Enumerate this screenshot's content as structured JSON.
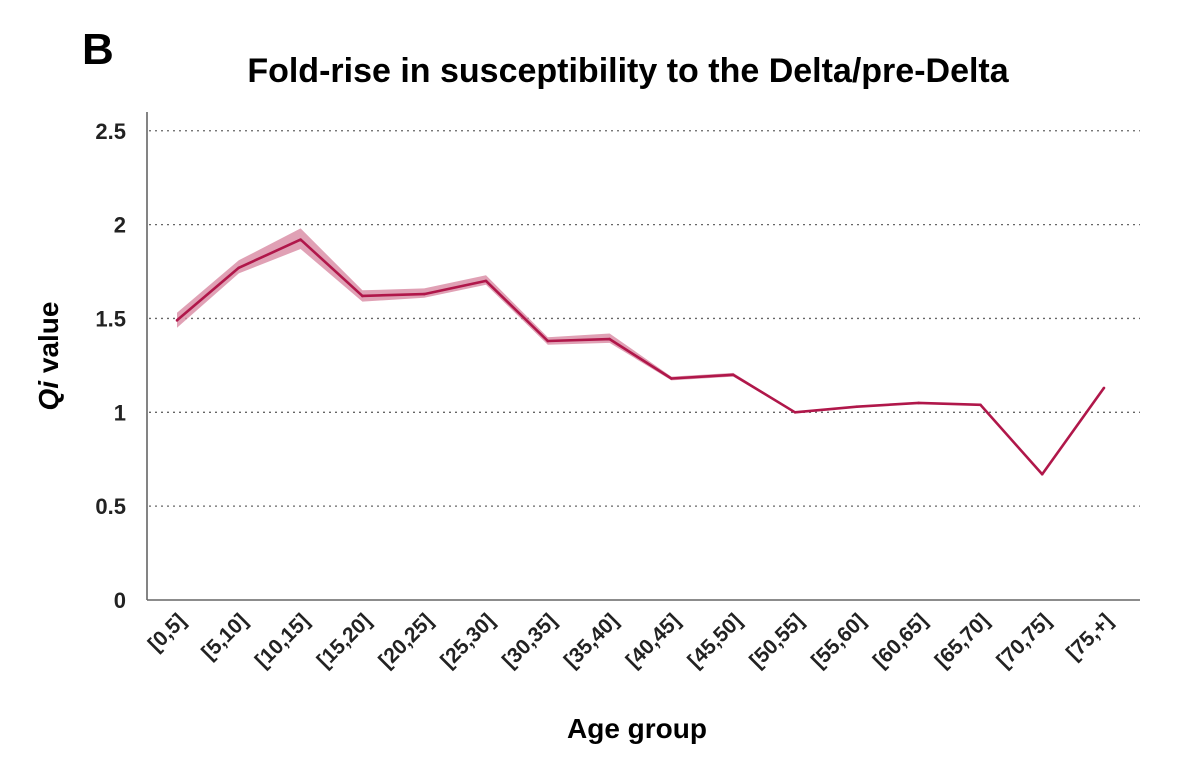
{
  "panel_letter": "B",
  "chart_data": {
    "type": "line",
    "title": "Fold-rise in susceptibility to the Delta/pre-Delta",
    "xlabel": "Age group",
    "ylabel_italic": "Qi",
    "ylabel_rest": " value",
    "ylim": [
      0,
      2.6
    ],
    "yticks": [
      {
        "value": 0,
        "label": "0"
      },
      {
        "value": 0.5,
        "label": "0.5"
      },
      {
        "value": 1,
        "label": "1"
      },
      {
        "value": 1.5,
        "label": "1.5"
      },
      {
        "value": 2,
        "label": "2"
      },
      {
        "value": 2.5,
        "label": "2.5"
      }
    ],
    "grid": true,
    "categories": [
      "[0,5]",
      "[5,10]",
      "[10,15]",
      "[15,20]",
      "[20,25]",
      "[25,30]",
      "[30,35]",
      "[35,40]",
      "[40,45]",
      "[45,50]",
      "[50,55]",
      "[55,60]",
      "[60,65]",
      "[65,70]",
      "[70,75]",
      "[75,+]"
    ],
    "series": [
      {
        "values": [
          1.49,
          1.77,
          1.92,
          1.62,
          1.63,
          1.7,
          1.38,
          1.39,
          1.18,
          1.2,
          1.0,
          1.03,
          1.05,
          1.04,
          0.67,
          1.13
        ],
        "lower": [
          1.45,
          1.74,
          1.87,
          1.59,
          1.61,
          1.68,
          1.36,
          1.37,
          1.17,
          1.19,
          0.995,
          1.025,
          1.045,
          1.035,
          0.665,
          1.125
        ],
        "upper": [
          1.53,
          1.81,
          1.98,
          1.65,
          1.66,
          1.73,
          1.4,
          1.42,
          1.19,
          1.21,
          1.005,
          1.035,
          1.055,
          1.045,
          0.675,
          1.135
        ],
        "color": "#b0174a",
        "band_color": "#d88aa3"
      }
    ]
  }
}
